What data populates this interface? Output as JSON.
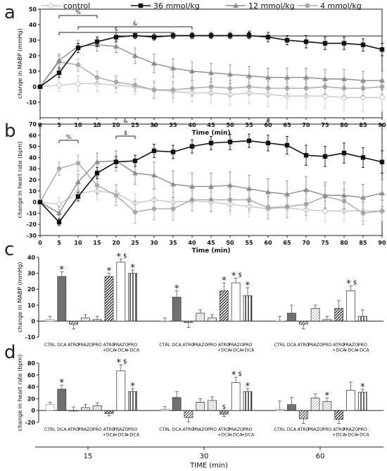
{
  "panels": {
    "a": "a",
    "b": "b",
    "c": "c",
    "d": "d"
  },
  "legend": [
    {
      "label": "control",
      "marker": "diamond-open",
      "color": "#c8c8c8"
    },
    {
      "label": "36 mmol/kg",
      "marker": "square",
      "color": "#111111"
    },
    {
      "label": "12 mmol/kg",
      "marker": "triangle",
      "color": "#8c8c8c"
    },
    {
      "label": "4 mmol/kg",
      "marker": "circle",
      "color": "#a8a8a8"
    }
  ],
  "bottom_axis": {
    "groups": [
      "15",
      "30",
      "60"
    ],
    "label": "TIME (min)"
  },
  "chart_data": [
    {
      "panel": "a",
      "type": "line",
      "xlabel": "Time (min)",
      "ylabel": "change in MABP (mmHg)",
      "x": [
        0,
        5,
        10,
        15,
        20,
        25,
        30,
        35,
        40,
        45,
        50,
        55,
        60,
        65,
        70,
        75,
        80,
        85,
        90
      ],
      "ylim": [
        -20,
        50
      ],
      "yticks": [
        -10,
        0,
        10,
        20,
        30,
        40,
        50
      ],
      "series": [
        {
          "name": "control",
          "color": "#c8c8c8",
          "marker": "diamond-open",
          "values": [
            0,
            1,
            2,
            2,
            1,
            0,
            -2,
            -3,
            -4,
            -4,
            -5,
            -4,
            -5,
            -6,
            -6,
            -6,
            -7,
            -7,
            -7
          ],
          "err": [
            1,
            4,
            5,
            5,
            5,
            5,
            6,
            7,
            6,
            7,
            7,
            7,
            8,
            8,
            8,
            8,
            8,
            9,
            9
          ]
        },
        {
          "name": "36 mmol/kg",
          "color": "#111111",
          "marker": "square",
          "values": [
            0,
            9,
            25,
            29,
            32,
            33,
            32,
            33,
            33,
            33,
            33,
            33,
            32,
            30,
            29,
            28,
            28,
            27,
            24
          ],
          "err": [
            1,
            3,
            3,
            3,
            3,
            2,
            2,
            2,
            2,
            2,
            2,
            2,
            3,
            3,
            4,
            4,
            4,
            4,
            4
          ]
        },
        {
          "name": "12 mmol/kg",
          "color": "#8c8c8c",
          "marker": "triangle",
          "values": [
            0,
            17,
            26,
            27,
            26,
            20,
            15,
            12,
            10,
            9,
            8,
            7,
            6,
            6,
            6,
            5,
            5,
            4,
            4
          ],
          "err": [
            1,
            4,
            4,
            4,
            4,
            5,
            6,
            6,
            6,
            6,
            6,
            6,
            6,
            6,
            6,
            6,
            6,
            6,
            6
          ]
        },
        {
          "name": "4 mmol/kg",
          "color": "#a8a8a8",
          "marker": "circle",
          "values": [
            0,
            16,
            14,
            6,
            3,
            1,
            -2,
            -2,
            -1,
            0,
            -1,
            0,
            -1,
            -1,
            -1,
            0,
            -1,
            -1,
            0
          ],
          "err": [
            1,
            4,
            4,
            4,
            4,
            4,
            5,
            5,
            5,
            5,
            5,
            5,
            5,
            5,
            5,
            5,
            5,
            5,
            5
          ]
        }
      ],
      "sig": [
        {
          "label": "%",
          "x1": 5,
          "x2": 15,
          "row": 0
        },
        {
          "label": "&",
          "x1": 10,
          "x2": 40,
          "row": 1
        },
        {
          "label": "$",
          "x1": 5,
          "x2": 35,
          "row": 2
        },
        {
          "label": "#",
          "x1": 20,
          "x2": 90,
          "row": 3
        }
      ]
    },
    {
      "panel": "b",
      "type": "line",
      "xlabel": "Time (min)",
      "ylabel": "change in heart rate (bpm)",
      "x": [
        0,
        5,
        10,
        15,
        20,
        25,
        30,
        35,
        40,
        45,
        50,
        55,
        60,
        65,
        70,
        75,
        80,
        85,
        90
      ],
      "ylim": [
        -30,
        70
      ],
      "yticks": [
        -30,
        -20,
        -10,
        0,
        10,
        20,
        30,
        40,
        50,
        60,
        70
      ],
      "series": [
        {
          "name": "control",
          "color": "#c8c8c8",
          "marker": "diamond-open",
          "values": [
            0,
            -2,
            8,
            10,
            8,
            -1,
            2,
            0,
            1,
            0,
            -2,
            -4,
            -6,
            -5,
            -7,
            -8,
            -8,
            -8,
            -8
          ],
          "err": [
            1,
            6,
            7,
            8,
            8,
            9,
            9,
            9,
            9,
            9,
            9,
            9,
            9,
            9,
            9,
            9,
            9,
            9,
            9
          ]
        },
        {
          "name": "36 mmol/kg",
          "color": "#111111",
          "marker": "square",
          "values": [
            0,
            -18,
            5,
            26,
            36,
            37,
            46,
            45,
            50,
            53,
            54,
            55,
            53,
            51,
            42,
            41,
            44,
            40,
            36
          ],
          "err": [
            1,
            3,
            4,
            5,
            5,
            5,
            6,
            6,
            6,
            6,
            7,
            6,
            7,
            8,
            9,
            9,
            9,
            9,
            10
          ]
        },
        {
          "name": "12 mmol/kg",
          "color": "#8c8c8c",
          "marker": "triangle",
          "values": [
            0,
            -10,
            18,
            36,
            37,
            26,
            24,
            16,
            14,
            14,
            15,
            12,
            9,
            7,
            11,
            6,
            6,
            4,
            8
          ],
          "err": [
            1,
            6,
            7,
            8,
            9,
            10,
            12,
            12,
            12,
            12,
            12,
            12,
            12,
            12,
            12,
            12,
            12,
            12,
            12
          ]
        },
        {
          "name": "4 mmol/kg",
          "color": "#a8a8a8",
          "marker": "circle",
          "values": [
            0,
            30,
            35,
            15,
            6,
            -9,
            -6,
            -6,
            2,
            2,
            2,
            2,
            -5,
            -4,
            -2,
            5,
            1,
            -10,
            -8
          ],
          "err": [
            1,
            6,
            7,
            8,
            9,
            10,
            10,
            10,
            10,
            10,
            10,
            10,
            10,
            10,
            10,
            10,
            10,
            10,
            10
          ]
        }
      ],
      "sig": [
        {
          "label": "%",
          "x1": 5,
          "x2": 10,
          "row": 3
        },
        {
          "label": "&",
          "x1": 15,
          "x2": 30,
          "row": 0
        },
        {
          "label": "$",
          "x1": 20,
          "x2": 25,
          "row": 2
        },
        {
          "label": "#",
          "x1": 30,
          "x2": 90,
          "row": 0
        }
      ]
    },
    {
      "panel": "c",
      "type": "bar",
      "ylabel": "change in MABP (mmHg)",
      "ylim": [
        -10,
        40
      ],
      "yticks": [
        -10,
        0,
        10,
        20,
        30,
        40
      ],
      "categories": [
        "CTRL",
        "DCA",
        "ATRO",
        "PRAZO",
        "PRO",
        "ATRO +DCA",
        "PRAZO +DCA",
        "PRO +DCA"
      ],
      "groups": [
        {
          "time": "15",
          "values": [
            1,
            28,
            -2,
            2,
            1,
            28,
            37,
            30
          ],
          "err": [
            2,
            3,
            3,
            2,
            2,
            2,
            2,
            2
          ],
          "marks": [
            "",
            "*",
            "",
            "",
            "",
            "*",
            "*$",
            "*"
          ]
        },
        {
          "time": "30",
          "values": [
            0,
            15,
            -1,
            5,
            2,
            19,
            24,
            16
          ],
          "err": [
            2,
            4,
            3,
            2,
            2,
            5,
            3,
            5
          ],
          "marks": [
            "",
            "*",
            "",
            "",
            "",
            "*",
            "*$",
            "*"
          ]
        },
        {
          "time": "60",
          "values": [
            0,
            5,
            -2,
            8,
            1,
            8,
            19,
            3
          ],
          "err": [
            3,
            5,
            3,
            2,
            2,
            5,
            3,
            4
          ],
          "marks": [
            "",
            "",
            "",
            "",
            "",
            "",
            "*$",
            ""
          ]
        }
      ]
    },
    {
      "panel": "d",
      "type": "bar",
      "ylabel": "change in heart rate (bpm)",
      "ylim": [
        -20,
        80
      ],
      "yticks": [
        -20,
        0,
        20,
        40,
        60,
        80
      ],
      "categories": [
        "CTRL",
        "DCA",
        "ATRO",
        "PRAZO",
        "PRO",
        "ATRO +DCA",
        "PRAZO +DCA",
        "PRO +DCA"
      ],
      "groups": [
        {
          "time": "15",
          "values": [
            10,
            36,
            0,
            5,
            8,
            -5,
            67,
            32
          ],
          "err": [
            4,
            7,
            6,
            5,
            5,
            4,
            10,
            5
          ],
          "marks": [
            "",
            "*",
            "",
            "",
            "",
            "",
            "*$",
            "*"
          ]
        },
        {
          "time": "30",
          "values": [
            2,
            22,
            -12,
            14,
            17,
            -6,
            47,
            32
          ],
          "err": [
            5,
            10,
            7,
            6,
            6,
            4,
            9,
            5
          ],
          "marks": [
            "",
            "",
            "",
            "",
            "",
            "$",
            "*$",
            "*"
          ]
        },
        {
          "time": "60",
          "values": [
            2,
            10,
            -14,
            21,
            15,
            -15,
            34,
            31
          ],
          "err": [
            14,
            12,
            8,
            7,
            6,
            7,
            14,
            5
          ],
          "marks": [
            "",
            "",
            "",
            "",
            "*",
            "",
            "",
            "*"
          ]
        }
      ]
    }
  ]
}
